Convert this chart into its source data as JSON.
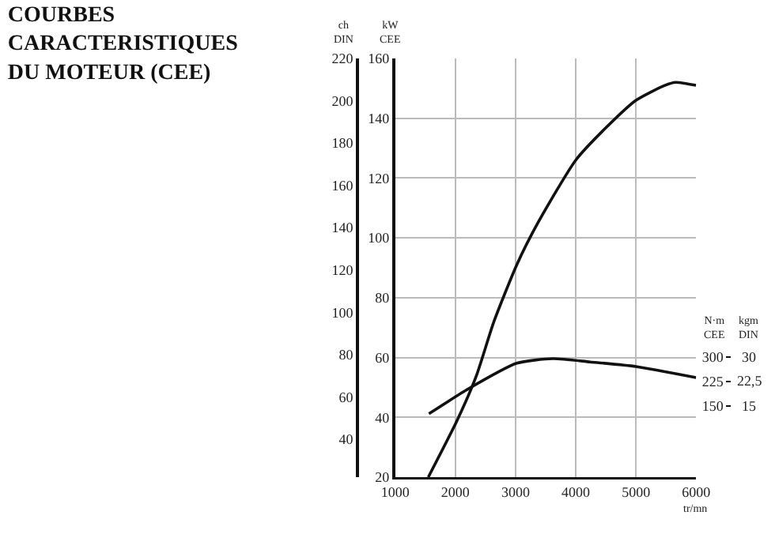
{
  "chart_data": {
    "type": "line",
    "title": "COURBES\nCARACTERISTIQUES\nDU MOTEUR (CEE)",
    "xlabel": "tr/mn",
    "ylabel": "kW CEE",
    "y2label": "ch DIN",
    "y3label": "N·m CEE",
    "xlim": [
      1000,
      6000
    ],
    "xticks": [
      1000,
      2000,
      3000,
      4000,
      5000,
      6000
    ],
    "ylim": [
      20,
      160
    ],
    "yticks": [
      20,
      40,
      60,
      80,
      100,
      120,
      140,
      160
    ],
    "y2lim": [
      22,
      220
    ],
    "y2ticks": [
      40,
      60,
      80,
      100,
      120,
      140,
      160,
      180,
      200,
      220
    ],
    "y3lim": [
      -68,
      1215
    ],
    "y3ticks": [
      150,
      225,
      300
    ],
    "annotations": [
      "kgm DIN",
      "30",
      "22,5",
      "15"
    ],
    "grid": true,
    "marker": "none",
    "line_style": "solid",
    "series": [
      {
        "color": "#111111",
        "x": [
          1550,
          2030,
          2350,
          2640,
          3020,
          3370,
          4000,
          4510,
          5000,
          5480,
          5660,
          6000
        ],
        "values": [
          20,
          39,
          54,
          72,
          91,
          105,
          126,
          137,
          146,
          151,
          152,
          151
        ]
      },
      {
        "color": "#111111",
        "axis": "y3",
        "x": [
          1560,
          2220,
          3020,
          3620,
          4240,
          5000,
          6000
        ],
        "values": [
          126,
          203,
          281,
          295,
          285,
          271,
          237
        ]
      }
    ]
  }
}
